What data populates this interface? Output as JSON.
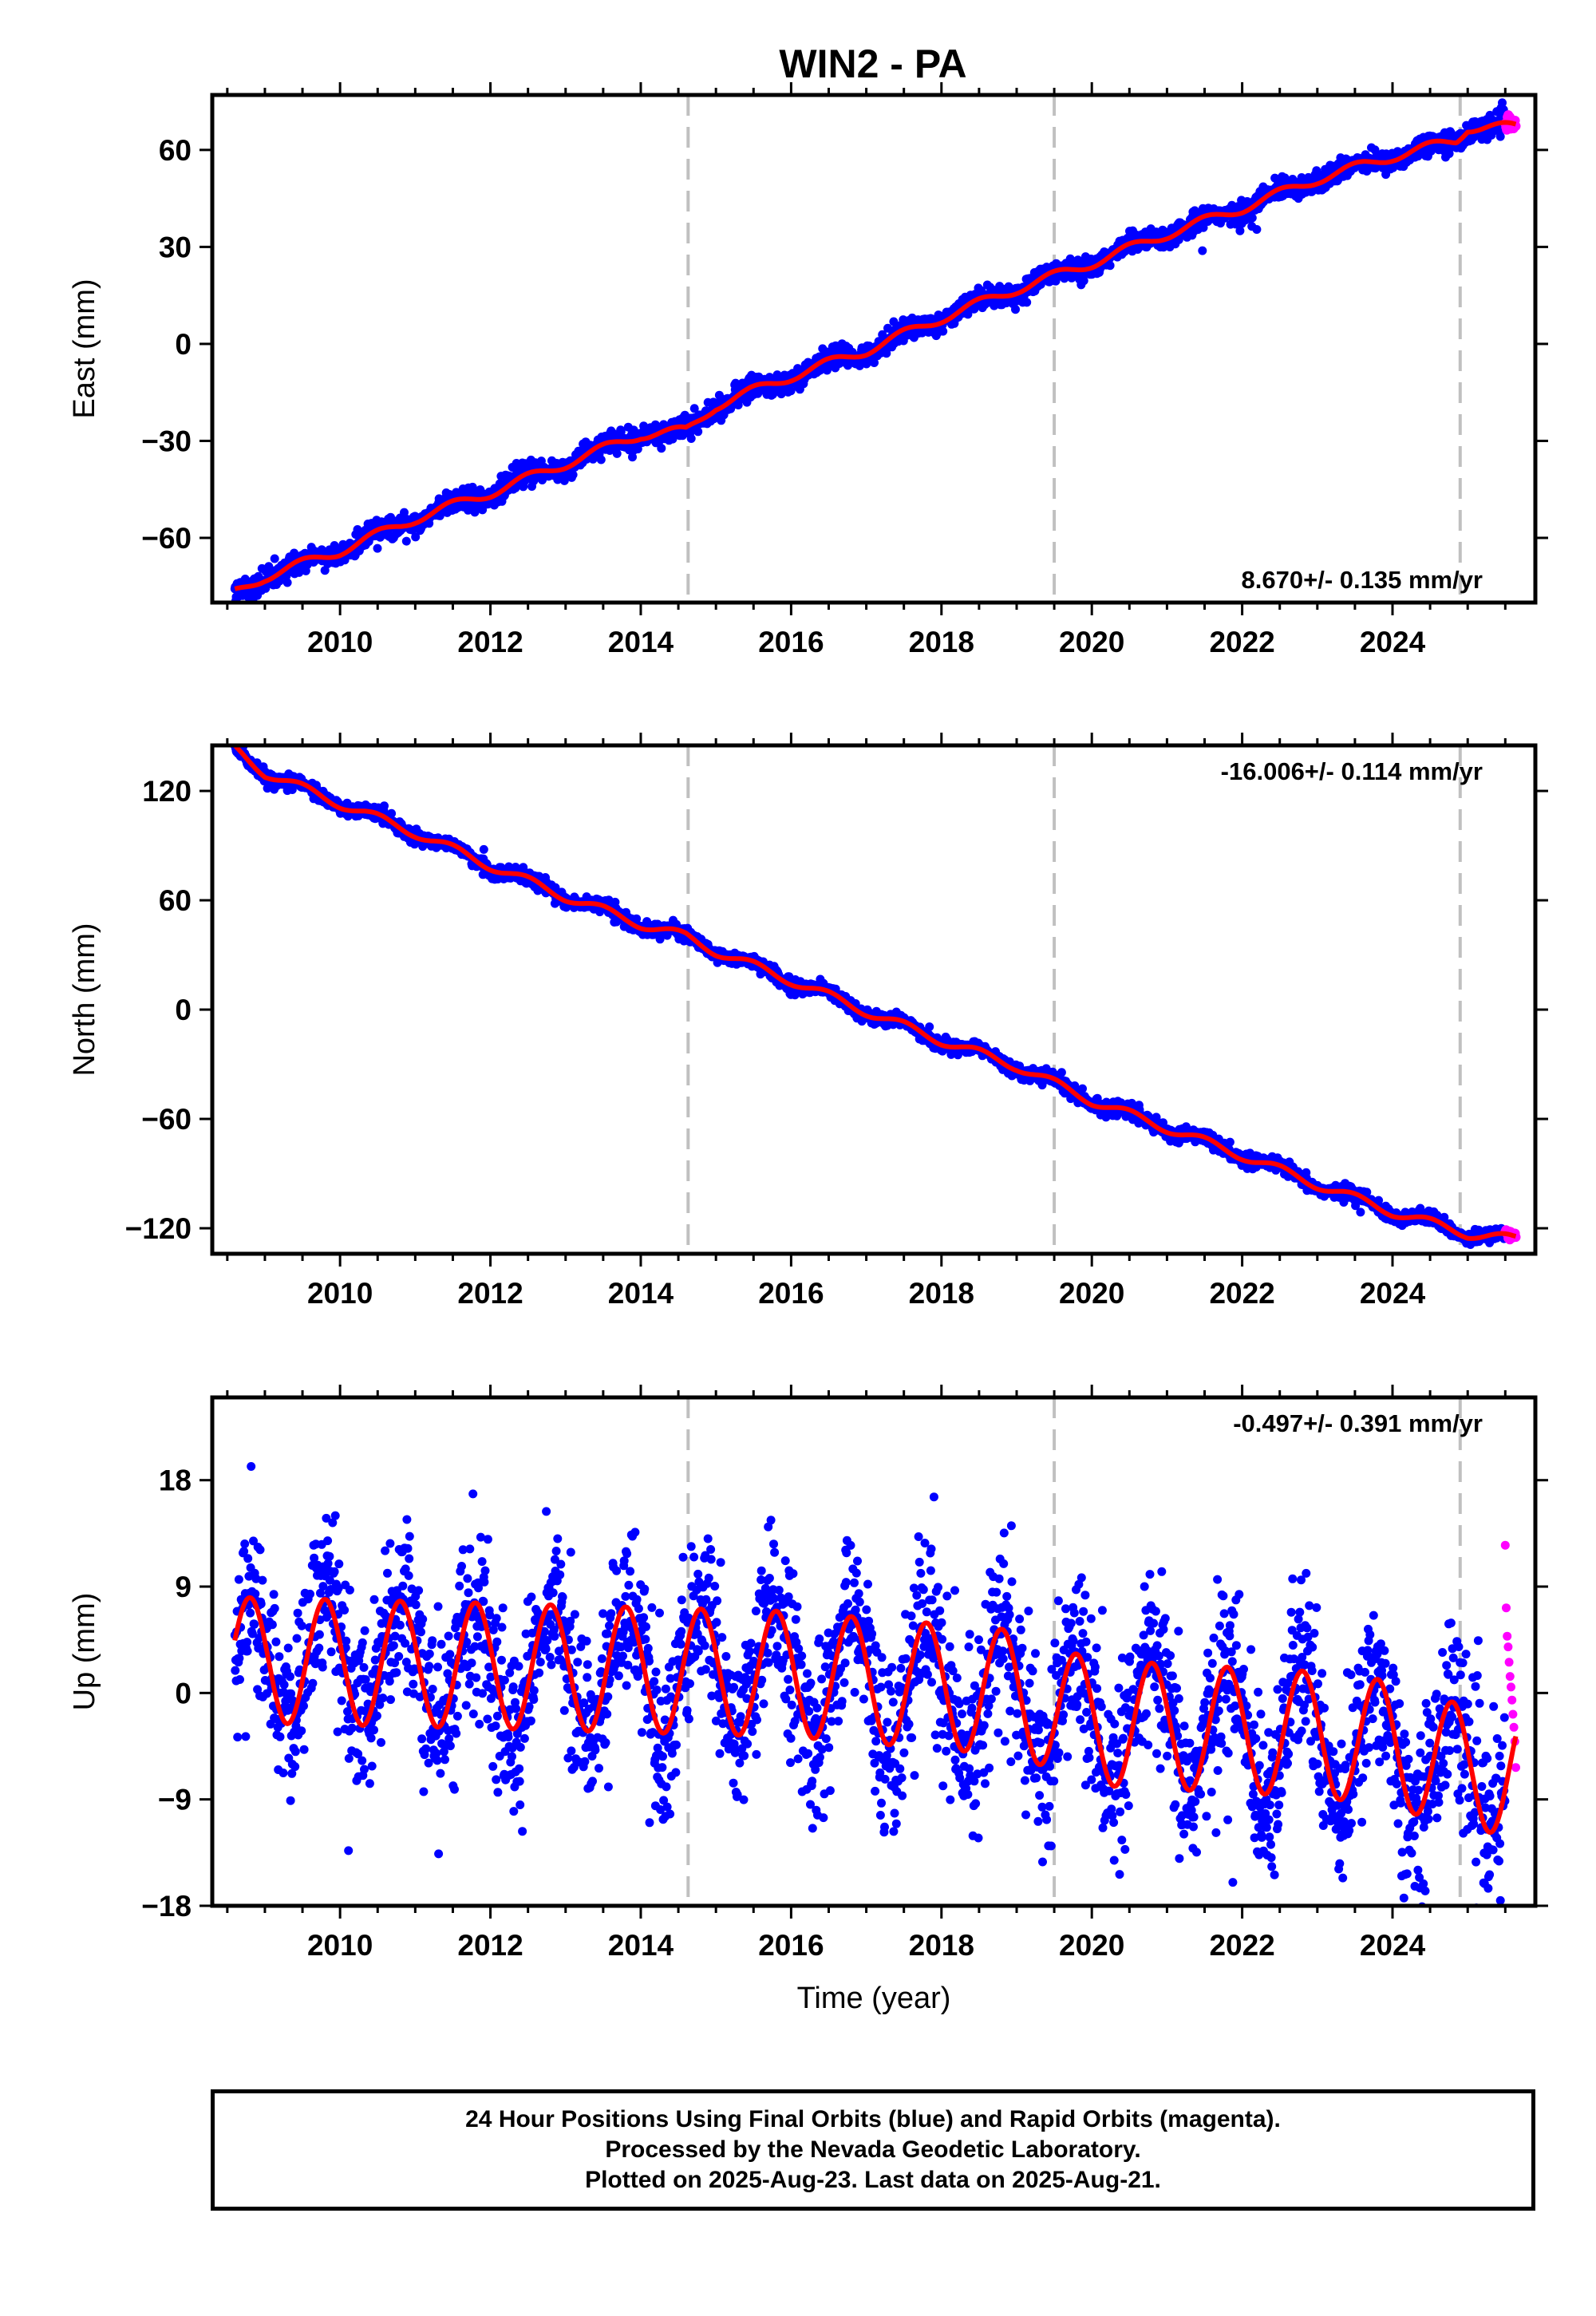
{
  "title": "WIN2 - PA",
  "colors": {
    "final": "#0000ff",
    "rapid": "#ff00ff",
    "model": "#ff0000",
    "break": "#c0c0c0",
    "frame": "#000000"
  },
  "footer": {
    "line1": "24 Hour Positions Using Final Orbits (blue) and Rapid Orbits (magenta).",
    "line2": "Processed by the Nevada Geodetic Laboratory.",
    "line3": "Plotted on 2025-Aug-23. Last data on 2025-Aug-21."
  },
  "chart_data": [
    {
      "type": "scatter",
      "component": "east",
      "ylabel": "East (mm)",
      "rate_label": "8.670+/- 0.135 mm/yr",
      "rate_position": "bottom-right",
      "xlim": [
        2008.3,
        2025.9
      ],
      "ylim": [
        -80,
        77
      ],
      "xticks": [
        2010,
        2012,
        2014,
        2016,
        2018,
        2020,
        2022,
        2024
      ],
      "xtick_labels": [
        "2010",
        "2012",
        "2014",
        "2016",
        "2018",
        "2020",
        "2022",
        "2024"
      ],
      "yticks": [
        -60,
        -30,
        0,
        30,
        60
      ],
      "ytick_labels": [
        "−60",
        "−30",
        "0",
        "30",
        "60"
      ],
      "grid": false,
      "breaks": [
        2014.63,
        2019.5,
        2024.9
      ],
      "rate_mm_per_yr": 8.67,
      "model_anchor": [
        [
          2008.6,
          -77
        ],
        [
          2009.0,
          -72
        ],
        [
          2010.0,
          -64
        ],
        [
          2011.0,
          -54
        ],
        [
          2012.0,
          -46
        ],
        [
          2013.0,
          -37
        ],
        [
          2014.0,
          -28
        ],
        [
          2014.6,
          -27
        ],
        [
          2015.0,
          -19
        ],
        [
          2016.0,
          -10
        ],
        [
          2017.0,
          -2
        ],
        [
          2018.0,
          8
        ],
        [
          2019.0,
          17
        ],
        [
          2020.0,
          25
        ],
        [
          2021.0,
          34
        ],
        [
          2022.0,
          42
        ],
        [
          2023.0,
          51
        ],
        [
          2024.0,
          58
        ],
        [
          2024.85,
          63
        ],
        [
          2025.0,
          67
        ],
        [
          2025.6,
          67
        ]
      ],
      "seasonal_amplitude": 1.5,
      "scatter_sigma": 1.6,
      "series": [
        {
          "name": "Final Orbits (blue)",
          "x_range": [
            2008.6,
            2025.5
          ]
        },
        {
          "name": "Rapid Orbits (magenta)",
          "x_range": [
            2025.5,
            2025.64
          ]
        }
      ]
    },
    {
      "type": "scatter",
      "component": "north",
      "ylabel": "North (mm)",
      "rate_label": "-16.006+/- 0.114 mm/yr",
      "rate_position": "top-right",
      "xlim": [
        2008.3,
        2025.9
      ],
      "ylim": [
        -134,
        145
      ],
      "xticks": [
        2010,
        2012,
        2014,
        2016,
        2018,
        2020,
        2022,
        2024
      ],
      "xtick_labels": [
        "2010",
        "2012",
        "2014",
        "2016",
        "2018",
        "2020",
        "2022",
        "2024"
      ],
      "yticks": [
        -120,
        -60,
        0,
        60,
        120
      ],
      "ytick_labels": [
        "−120",
        "−60",
        "0",
        "60",
        "120"
      ],
      "grid": false,
      "breaks": [
        2014.63,
        2019.5,
        2024.9
      ],
      "rate_mm_per_yr": -16.006,
      "model_anchor": [
        [
          2008.6,
          143
        ],
        [
          2009.0,
          130
        ],
        [
          2010.0,
          113
        ],
        [
          2011.0,
          97
        ],
        [
          2012.0,
          79
        ],
        [
          2013.0,
          62
        ],
        [
          2014.0,
          47
        ],
        [
          2014.6,
          40
        ],
        [
          2015.0,
          32
        ],
        [
          2016.0,
          16
        ],
        [
          2017.0,
          -1
        ],
        [
          2018.0,
          -17
        ],
        [
          2019.0,
          -31
        ],
        [
          2020.0,
          -50
        ],
        [
          2021.0,
          -65
        ],
        [
          2022.0,
          -80
        ],
        [
          2023.0,
          -96
        ],
        [
          2024.0,
          -111
        ],
        [
          2025.0,
          -123
        ],
        [
          2025.6,
          -126
        ]
      ],
      "seasonal_amplitude": 2.5,
      "scatter_sigma": 1.8,
      "series": [
        {
          "name": "Final Orbits (blue)",
          "x_range": [
            2008.6,
            2025.5
          ]
        },
        {
          "name": "Rapid Orbits (magenta)",
          "x_range": [
            2025.5,
            2025.64
          ]
        }
      ]
    },
    {
      "type": "scatter",
      "component": "up",
      "ylabel": "Up (mm)",
      "xlabel": "Time (year)",
      "rate_label": "-0.497+/- 0.391 mm/yr",
      "rate_position": "top-right",
      "xlim": [
        2008.3,
        2025.9
      ],
      "ylim": [
        -18,
        25
      ],
      "xticks": [
        2010,
        2012,
        2014,
        2016,
        2018,
        2020,
        2022,
        2024
      ],
      "xtick_labels": [
        "2010",
        "2012",
        "2014",
        "2016",
        "2018",
        "2020",
        "2022",
        "2024"
      ],
      "yticks": [
        -18,
        -9,
        0,
        9,
        18
      ],
      "ytick_labels": [
        "−18",
        "−9",
        "0",
        "9",
        "18"
      ],
      "grid": false,
      "breaks": [
        2014.63,
        2019.5,
        2024.9
      ],
      "rate_mm_per_yr": -0.497,
      "model_anchor": [
        [
          2008.6,
          2.8
        ],
        [
          2012.0,
          2.3
        ],
        [
          2016.0,
          1.6
        ],
        [
          2019.0,
          0.0
        ],
        [
          2020.0,
          -2.5
        ],
        [
          2023.0,
          -3.5
        ],
        [
          2024.0,
          -4.3
        ],
        [
          2025.0,
          -6.5
        ],
        [
          2025.6,
          -6.5
        ]
      ],
      "seasonal_amplitude": 5.3,
      "seasonal_peak_phase": 0.8,
      "scatter_sigma": 3.6,
      "rapid_values": [
        12.5,
        7.2,
        4.8,
        3.9,
        2.6,
        1.4,
        0.5,
        -0.6,
        -1.8,
        -2.9,
        -4.1,
        -6.3
      ],
      "series": [
        {
          "name": "Final Orbits (blue)",
          "x_range": [
            2008.6,
            2025.5
          ]
        },
        {
          "name": "Rapid Orbits (magenta)",
          "x_range": [
            2025.5,
            2025.64
          ]
        }
      ]
    }
  ]
}
